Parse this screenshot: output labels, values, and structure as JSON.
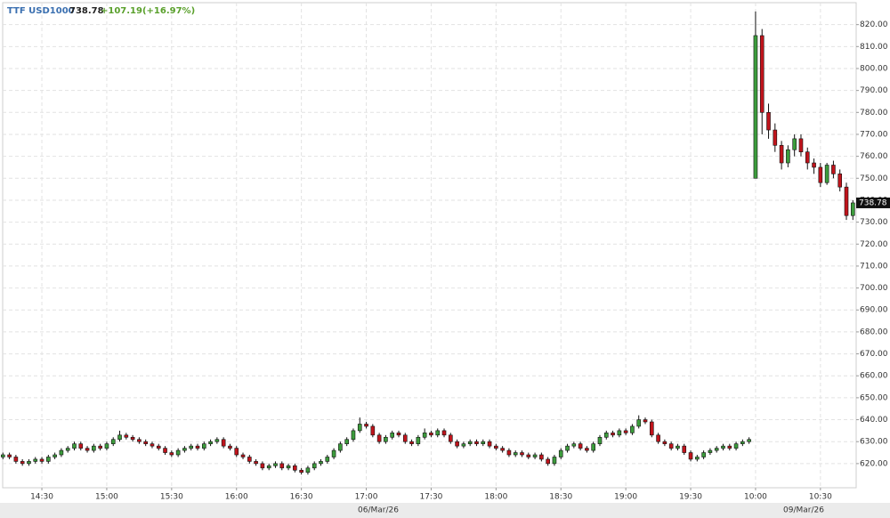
{
  "chart_data": {
    "type": "candlestick",
    "title": "TTF USD1000",
    "last_price": 738.78,
    "change": "+107.19(+16.97%)",
    "up_color": "#3c9c3c",
    "down_color": "#c0141c",
    "grid": true,
    "date_labels": [
      "06/Mar/26",
      "09/Mar/26"
    ],
    "categories": [
      null,
      null,
      null,
      null,
      null,
      null,
      "14:30",
      null,
      null,
      null,
      null,
      null,
      null,
      null,
      null,
      null,
      "15:00",
      null,
      null,
      null,
      null,
      null,
      null,
      null,
      null,
      null,
      "15:30",
      null,
      null,
      null,
      null,
      null,
      null,
      null,
      null,
      null,
      "16:00",
      null,
      null,
      null,
      null,
      null,
      null,
      null,
      null,
      null,
      "16:30",
      null,
      null,
      null,
      null,
      null,
      null,
      null,
      null,
      null,
      "17:00",
      null,
      null,
      null,
      null,
      null,
      null,
      null,
      null,
      null,
      "17:30",
      null,
      null,
      null,
      null,
      null,
      null,
      null,
      null,
      null,
      "18:00",
      null,
      null,
      null,
      null,
      null,
      null,
      null,
      null,
      null,
      "18:30",
      null,
      null,
      null,
      null,
      null,
      null,
      null,
      null,
      null,
      "19:00",
      null,
      null,
      null,
      null,
      null,
      null,
      null,
      null,
      null,
      "19:30",
      null,
      null,
      null,
      null,
      null,
      null,
      null,
      null,
      null,
      "10:00",
      null,
      null,
      null,
      null,
      null,
      null,
      null,
      null,
      null,
      "10:30",
      null,
      null,
      null,
      null,
      null
    ],
    "open": [
      623,
      624,
      623,
      621,
      620,
      621,
      622,
      621,
      623,
      624,
      626,
      627,
      629,
      627,
      626,
      628,
      627,
      629,
      631,
      633,
      632,
      631,
      630,
      629,
      628,
      627,
      625,
      624,
      626,
      627,
      628,
      627,
      629,
      630,
      631,
      628,
      627,
      624,
      623,
      621,
      620,
      618,
      619,
      620,
      618,
      619,
      617,
      616,
      618,
      620,
      621,
      623,
      626,
      629,
      631,
      635,
      638,
      637,
      633,
      630,
      632,
      634,
      633,
      630,
      629,
      632,
      634,
      633,
      635,
      633,
      630,
      628,
      629,
      630,
      629,
      630,
      628,
      627,
      626,
      624,
      625,
      624,
      623,
      624,
      622,
      620,
      623,
      626,
      628,
      629,
      627,
      626,
      629,
      632,
      634,
      633,
      635,
      634,
      637,
      640,
      639,
      633,
      630,
      629,
      627,
      628,
      625,
      622,
      623,
      625,
      626,
      627,
      628,
      627,
      629,
      630,
      750,
      815,
      780,
      772,
      765,
      757,
      763,
      768,
      762,
      757,
      755,
      748,
      756,
      752,
      746,
      733
    ],
    "high": [
      625,
      625,
      624,
      622,
      622,
      623,
      623,
      624,
      625,
      627,
      628,
      630,
      630,
      628,
      629,
      629,
      630,
      632,
      635,
      634,
      633,
      632,
      631,
      630,
      629,
      628,
      626,
      627,
      628,
      629,
      629,
      630,
      631,
      632,
      632,
      629,
      628,
      625,
      624,
      622,
      621,
      620,
      621,
      621,
      620,
      620,
      618,
      619,
      621,
      622,
      624,
      627,
      630,
      632,
      636,
      641,
      639,
      638,
      634,
      633,
      635,
      635,
      634,
      631,
      633,
      636,
      635,
      636,
      636,
      634,
      631,
      630,
      631,
      631,
      631,
      631,
      629,
      628,
      627,
      626,
      626,
      625,
      625,
      625,
      623,
      624,
      627,
      629,
      630,
      630,
      628,
      630,
      633,
      635,
      635,
      636,
      636,
      638,
      642,
      641,
      640,
      634,
      631,
      630,
      629,
      629,
      626,
      624,
      626,
      627,
      628,
      629,
      629,
      630,
      631,
      632,
      826,
      818,
      784,
      775,
      767,
      765,
      770,
      770,
      764,
      759,
      757,
      757,
      758,
      754,
      748,
      740
    ],
    "low": [
      622,
      622,
      620,
      619,
      619,
      620,
      620,
      620,
      622,
      623,
      625,
      626,
      626,
      625,
      625,
      626,
      626,
      628,
      630,
      631,
      630,
      629,
      628,
      627,
      626,
      624,
      623,
      623,
      625,
      626,
      626,
      626,
      628,
      629,
      627,
      626,
      623,
      622,
      620,
      619,
      617,
      617,
      618,
      617,
      617,
      616,
      615,
      615,
      617,
      619,
      620,
      622,
      625,
      628,
      630,
      634,
      636,
      632,
      629,
      629,
      631,
      632,
      629,
      628,
      628,
      631,
      632,
      632,
      632,
      629,
      627,
      627,
      628,
      628,
      628,
      627,
      626,
      625,
      623,
      623,
      623,
      622,
      622,
      621,
      619,
      619,
      622,
      625,
      627,
      626,
      625,
      625,
      628,
      631,
      632,
      632,
      633,
      633,
      636,
      638,
      632,
      629,
      628,
      626,
      626,
      624,
      621,
      621,
      622,
      624,
      625,
      626,
      626,
      626,
      628,
      629,
      750,
      770,
      768,
      762,
      754,
      755,
      760,
      760,
      754,
      752,
      746,
      747,
      750,
      744,
      731,
      731
    ],
    "close": [
      624,
      623,
      621,
      620,
      621,
      622,
      621,
      623,
      624,
      626,
      627,
      629,
      627,
      626,
      628,
      627,
      629,
      631,
      633,
      632,
      631,
      630,
      629,
      628,
      627,
      625,
      624,
      626,
      627,
      628,
      627,
      629,
      630,
      631,
      628,
      627,
      624,
      623,
      621,
      620,
      618,
      619,
      620,
      618,
      619,
      617,
      616,
      618,
      620,
      621,
      623,
      626,
      629,
      631,
      635,
      638,
      637,
      633,
      630,
      632,
      634,
      633,
      630,
      629,
      632,
      634,
      633,
      635,
      633,
      630,
      628,
      629,
      630,
      629,
      630,
      628,
      627,
      626,
      624,
      625,
      624,
      623,
      624,
      622,
      620,
      623,
      626,
      628,
      629,
      627,
      626,
      629,
      632,
      634,
      633,
      635,
      634,
      637,
      640,
      639,
      633,
      630,
      629,
      627,
      628,
      625,
      622,
      623,
      625,
      626,
      627,
      628,
      627,
      629,
      630,
      631,
      815,
      780,
      772,
      765,
      757,
      763,
      768,
      762,
      757,
      755,
      748,
      756,
      752,
      746,
      733,
      738.78
    ],
    "ylim": [
      609,
      830
    ],
    "yticks": [
      {
        "value": 620,
        "label": "620.00"
      },
      {
        "value": 630,
        "label": "630.00"
      },
      {
        "value": 640,
        "label": "640.00"
      },
      {
        "value": 650,
        "label": "650.00"
      },
      {
        "value": 660,
        "label": "660.00"
      },
      {
        "value": 670,
        "label": "670.00"
      },
      {
        "value": 680,
        "label": "680.00"
      },
      {
        "value": 690,
        "label": "690.00"
      },
      {
        "value": 700,
        "label": "700.00"
      },
      {
        "value": 710,
        "label": "710.00"
      },
      {
        "value": 720,
        "label": "720.00"
      },
      {
        "value": 730,
        "label": "730.00"
      },
      {
        "value": 740,
        "label": "740.00"
      },
      {
        "value": 750,
        "label": "750.00"
      },
      {
        "value": 760,
        "label": "760.00"
      },
      {
        "value": 770,
        "label": "770.00"
      },
      {
        "value": 780,
        "label": "780.00"
      },
      {
        "value": 790,
        "label": "790.00"
      },
      {
        "value": 800,
        "label": "800.00"
      },
      {
        "value": 810,
        "label": "810.00"
      },
      {
        "value": 820,
        "label": "820.00"
      }
    ]
  }
}
